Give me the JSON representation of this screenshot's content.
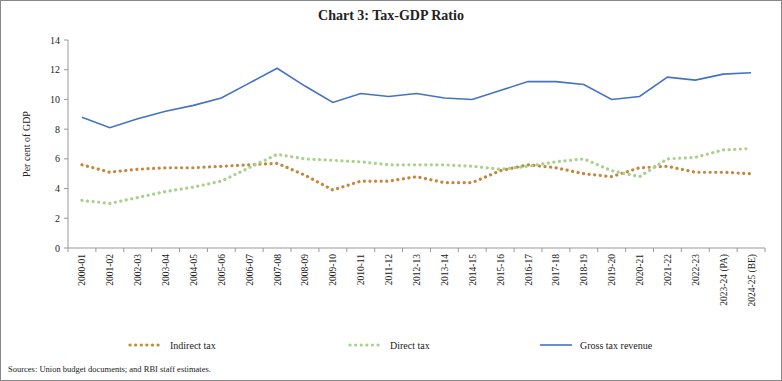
{
  "chart_data": {
    "type": "line",
    "title": "Chart 3: Tax-GDP Ratio",
    "y_label": "Per cent of GDP",
    "source": "Sources: Union budget documents; and RBI staff estimates.",
    "categories": [
      "2000-01",
      "2001-02",
      "2002-03",
      "2003-04",
      "2004-05",
      "2005-06",
      "2006-07",
      "2007-08",
      "2008-09",
      "2009-10",
      "2010-11",
      "2011-12",
      "2012-13",
      "2013-14",
      "2014-15",
      "2015-16",
      "2016-17",
      "2017-18",
      "2018-19",
      "2019-20",
      "2020-21",
      "2021-22",
      "2022-23",
      "2023-24 (PA)",
      "2024-25 (BE)"
    ],
    "series": [
      {
        "name": "Indirect tax",
        "color": "#c4883c",
        "line_style": "dotted",
        "values": [
          5.6,
          5.1,
          5.3,
          5.4,
          5.4,
          5.5,
          5.6,
          5.7,
          4.9,
          3.9,
          4.5,
          4.5,
          4.8,
          4.4,
          4.4,
          5.2,
          5.6,
          5.4,
          5.0,
          4.8,
          5.4,
          5.5,
          5.1,
          5.1,
          5.0
        ]
      },
      {
        "name": "Direct tax",
        "color": "#a9d18e",
        "line_style": "dotted",
        "values": [
          3.2,
          3.0,
          3.4,
          3.8,
          4.1,
          4.5,
          5.4,
          6.3,
          6.0,
          5.9,
          5.8,
          5.6,
          5.6,
          5.6,
          5.5,
          5.3,
          5.5,
          5.8,
          6.0,
          5.2,
          4.8,
          6.0,
          6.1,
          6.6,
          6.7
        ]
      },
      {
        "name": "Gross tax revenue",
        "color": "#4472c4",
        "line_style": "solid",
        "values": [
          8.8,
          8.1,
          8.7,
          9.2,
          9.6,
          10.1,
          11.1,
          12.1,
          10.9,
          9.8,
          10.4,
          10.2,
          10.4,
          10.1,
          10.0,
          10.6,
          11.2,
          11.2,
          11.0,
          10.0,
          10.2,
          11.5,
          11.3,
          11.7,
          11.8
        ]
      }
    ],
    "ylim": [
      0,
      14
    ],
    "yticks": [
      0,
      2,
      4,
      6,
      8,
      10,
      12,
      14
    ],
    "grid": false,
    "legend": "bottom"
  }
}
